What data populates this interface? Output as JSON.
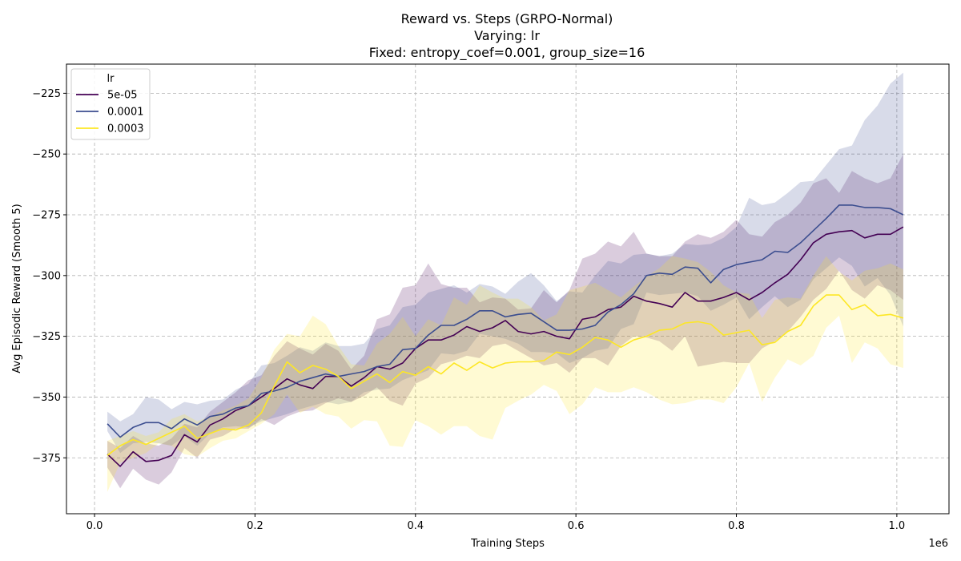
{
  "chart_data": {
    "type": "line",
    "title_lines": [
      "Reward vs. Steps (GRPO-Normal)",
      "Varying: lr",
      "Fixed: entropy_coef=0.001, group_size=16"
    ],
    "xlabel": "Training Steps",
    "ylabel": "Avg Episodic Reward (Smooth 5)",
    "x_offset_label": "1e6",
    "xlim": [
      -0.035,
      1.065
    ],
    "ylim": [
      -398,
      -213
    ],
    "x_ticks": [
      0.0,
      0.2,
      0.4,
      0.6,
      0.8,
      1.0
    ],
    "x_tick_labels": [
      "0.0",
      "0.2",
      "0.4",
      "0.6",
      "0.8",
      "1.0"
    ],
    "y_ticks": [
      -375,
      -350,
      -325,
      -300,
      -275,
      -250,
      -225
    ],
    "y_tick_labels": [
      "−375",
      "−350",
      "−325",
      "−300",
      "−275",
      "−250",
      "−225"
    ],
    "grid": true,
    "legend": {
      "title": "lr",
      "placement": "top-left"
    },
    "series": [
      {
        "name": "5e-05",
        "color": "#440154",
        "x": [
          0.016,
          0.032,
          0.048,
          0.064,
          0.08,
          0.096,
          0.112,
          0.128,
          0.144,
          0.16,
          0.176,
          0.192,
          0.208,
          0.224,
          0.24,
          0.256,
          0.272,
          0.288,
          0.304,
          0.32,
          0.336,
          0.352,
          0.368,
          0.384,
          0.4,
          0.416,
          0.432,
          0.448,
          0.464,
          0.48,
          0.496,
          0.512,
          0.528,
          0.544,
          0.56,
          0.576,
          0.592,
          0.608,
          0.624,
          0.64,
          0.656,
          0.672,
          0.688,
          0.704,
          0.72,
          0.736,
          0.752,
          0.768,
          0.784,
          0.8,
          0.816,
          0.832,
          0.848,
          0.864,
          0.88,
          0.896,
          0.912,
          0.928,
          0.944,
          0.96,
          0.976,
          0.992,
          1.008
        ],
        "mean": [
          -373.5,
          -378.5,
          -372.5,
          -376.5,
          -376.0,
          -374.0,
          -365.5,
          -368.5,
          -361.5,
          -359.0,
          -355.5,
          -353.5,
          -350.0,
          -346.5,
          -342.5,
          -345.0,
          -346.5,
          -341.5,
          -341.5,
          -345.5,
          -342.0,
          -337.5,
          -338.5,
          -336.0,
          -330.0,
          -326.5,
          -326.5,
          -324.5,
          -321.0,
          -323.0,
          -321.5,
          -318.5,
          -323.0,
          -324.0,
          -323.0,
          -325.0,
          -326.0,
          -318.0,
          -317.0,
          -314.0,
          -313.0,
          -308.5,
          -310.5,
          -311.5,
          -313.0,
          -307.0,
          -310.5,
          -310.5,
          -309.0,
          -307.0,
          -310.0,
          -307.0,
          -303.0,
          -299.5,
          -293.5,
          -286.5,
          -283.0,
          -282.0,
          -281.5,
          -284.5,
          -283.0,
          -283.0,
          -280.0
        ],
        "upper": [
          -368.0,
          -371.0,
          -366.0,
          -369.0,
          -370.0,
          -367.0,
          -361.0,
          -362.5,
          -356.0,
          -352.0,
          -348.0,
          -343.0,
          -341.0,
          -333.0,
          -327.0,
          -330.0,
          -332.5,
          -328.0,
          -331.0,
          -338.5,
          -333.0,
          -318.0,
          -316.0,
          -305.0,
          -304.0,
          -295.0,
          -303.5,
          -305.0,
          -305.0,
          -311.0,
          -309.0,
          -309.5,
          -314.0,
          -313.5,
          -306.0,
          -311.0,
          -306.0,
          -293.0,
          -291.0,
          -286.0,
          -288.0,
          -282.0,
          -291.0,
          -292.0,
          -292.0,
          -286.0,
          -283.0,
          -284.5,
          -282.0,
          -277.0,
          -283.0,
          -284.0,
          -278.0,
          -275.0,
          -270.0,
          -262.0,
          -260.0,
          -266.0,
          -257.0,
          -260.0,
          -262.0,
          -260.0,
          -250.0
        ],
        "lower": [
          -379.0,
          -387.5,
          -379.5,
          -384.0,
          -386.0,
          -381.0,
          -371.0,
          -375.0,
          -367.5,
          -366.0,
          -363.0,
          -363.0,
          -359.0,
          -361.5,
          -358.0,
          -356.0,
          -355.5,
          -352.5,
          -350.5,
          -352.0,
          -349.5,
          -346.0,
          -351.5,
          -353.5,
          -344.5,
          -342.0,
          -336.5,
          -335.0,
          -333.0,
          -334.0,
          -329.0,
          -328.0,
          -331.0,
          -334.0,
          -337.0,
          -336.0,
          -340.0,
          -334.0,
          -334.0,
          -337.0,
          -329.0,
          -325.0,
          -325.5,
          -327.0,
          -331.0,
          -325.0,
          -337.5,
          -336.5,
          -335.5,
          -336.0,
          -336.0,
          -330.0,
          -327.0,
          -323.0,
          -317.0,
          -310.0,
          -305.5,
          -298.0,
          -306.0,
          -309.5,
          -304.0,
          -306.0,
          -310.0
        ]
      },
      {
        "name": "0.0001",
        "color": "#3b4d8f",
        "x": [
          0.016,
          0.032,
          0.048,
          0.064,
          0.08,
          0.096,
          0.112,
          0.128,
          0.144,
          0.16,
          0.176,
          0.192,
          0.208,
          0.224,
          0.24,
          0.256,
          0.272,
          0.288,
          0.304,
          0.32,
          0.336,
          0.352,
          0.368,
          0.384,
          0.4,
          0.416,
          0.432,
          0.448,
          0.464,
          0.48,
          0.496,
          0.512,
          0.528,
          0.544,
          0.56,
          0.576,
          0.592,
          0.608,
          0.624,
          0.64,
          0.656,
          0.672,
          0.688,
          0.704,
          0.72,
          0.736,
          0.752,
          0.768,
          0.784,
          0.8,
          0.816,
          0.832,
          0.848,
          0.864,
          0.88,
          0.896,
          0.912,
          0.928,
          0.944,
          0.96,
          0.976,
          0.992,
          1.008
        ],
        "mean": [
          -361.0,
          -366.5,
          -362.5,
          -360.5,
          -360.5,
          -363.0,
          -359.0,
          -361.5,
          -358.0,
          -357.0,
          -354.5,
          -353.5,
          -348.5,
          -347.5,
          -346.0,
          -343.5,
          -342.0,
          -340.5,
          -341.5,
          -340.5,
          -339.5,
          -337.5,
          -336.5,
          -330.5,
          -330.0,
          -324.5,
          -320.5,
          -320.5,
          -318.0,
          -314.5,
          -314.5,
          -317.0,
          -316.0,
          -315.5,
          -319.0,
          -322.5,
          -322.5,
          -322.0,
          -320.5,
          -315.0,
          -312.0,
          -307.5,
          -300.0,
          -299.0,
          -299.5,
          -296.5,
          -297.0,
          -303.0,
          -297.5,
          -295.5,
          -294.5,
          -293.5,
          -290.0,
          -290.5,
          -286.5,
          -281.5,
          -276.5,
          -271.0,
          -271.0,
          -272.0,
          -272.0,
          -272.5,
          -275.0
        ],
        "upper": [
          -356.0,
          -360.0,
          -357.0,
          -350.0,
          -351.0,
          -355.0,
          -352.0,
          -353.0,
          -351.5,
          -351.0,
          -347.0,
          -344.5,
          -337.0,
          -336.0,
          -333.0,
          -329.5,
          -331.0,
          -327.5,
          -329.0,
          -329.0,
          -328.0,
          -322.0,
          -320.5,
          -313.0,
          -312.0,
          -307.0,
          -305.5,
          -304.0,
          -307.0,
          -303.5,
          -304.5,
          -307.5,
          -302.5,
          -299.0,
          -304.0,
          -310.5,
          -306.5,
          -307.0,
          -300.0,
          -294.0,
          -295.0,
          -291.5,
          -291.0,
          -292.0,
          -291.0,
          -287.0,
          -287.5,
          -287.0,
          -284.5,
          -280.0,
          -268.0,
          -271.0,
          -270.0,
          -266.0,
          -261.5,
          -261.0,
          -254.5,
          -248.0,
          -246.5,
          -236.0,
          -230.0,
          -221.0,
          -216.5
        ],
        "lower": [
          -364.0,
          -373.0,
          -369.0,
          -368.5,
          -369.0,
          -370.0,
          -366.0,
          -370.0,
          -365.0,
          -362.5,
          -362.0,
          -362.5,
          -360.0,
          -358.5,
          -357.0,
          -355.0,
          -353.5,
          -352.0,
          -353.0,
          -352.0,
          -348.0,
          -347.0,
          -346.5,
          -343.0,
          -341.0,
          -339.0,
          -332.0,
          -332.5,
          -331.0,
          -324.0,
          -325.0,
          -326.0,
          -328.0,
          -331.5,
          -331.5,
          -332.0,
          -336.0,
          -334.0,
          -331.0,
          -330.0,
          -322.0,
          -320.0,
          -307.0,
          -308.0,
          -307.5,
          -307.0,
          -308.5,
          -314.5,
          -312.0,
          -309.0,
          -318.0,
          -313.0,
          -308.5,
          -313.0,
          -310.0,
          -301.5,
          -297.0,
          -292.5,
          -296.0,
          -304.5,
          -301.0,
          -308.0,
          -321.0
        ]
      },
      {
        "name": "0.0003",
        "color": "#fde725",
        "x": [
          0.016,
          0.032,
          0.048,
          0.064,
          0.08,
          0.096,
          0.112,
          0.128,
          0.144,
          0.16,
          0.176,
          0.192,
          0.208,
          0.224,
          0.24,
          0.256,
          0.272,
          0.288,
          0.304,
          0.32,
          0.336,
          0.352,
          0.368,
          0.384,
          0.4,
          0.416,
          0.432,
          0.448,
          0.464,
          0.48,
          0.496,
          0.512,
          0.528,
          0.544,
          0.56,
          0.576,
          0.592,
          0.608,
          0.624,
          0.64,
          0.656,
          0.672,
          0.688,
          0.704,
          0.72,
          0.736,
          0.752,
          0.768,
          0.784,
          0.8,
          0.816,
          0.832,
          0.848,
          0.864,
          0.88,
          0.896,
          0.912,
          0.928,
          0.944,
          0.96,
          0.976,
          0.992,
          1.008
        ],
        "mean": [
          -374.0,
          -370.0,
          -367.5,
          -369.5,
          -367.0,
          -364.5,
          -362.0,
          -367.0,
          -365.0,
          -363.0,
          -363.5,
          -361.5,
          -356.5,
          -345.5,
          -335.5,
          -340.0,
          -337.0,
          -338.5,
          -341.5,
          -346.5,
          -343.5,
          -340.5,
          -344.0,
          -339.5,
          -341.0,
          -337.5,
          -340.5,
          -336.0,
          -339.0,
          -335.5,
          -338.0,
          -336.0,
          -335.5,
          -335.5,
          -335.0,
          -331.5,
          -332.5,
          -329.5,
          -325.5,
          -326.5,
          -329.5,
          -326.5,
          -325.0,
          -322.5,
          -322.0,
          -319.5,
          -319.0,
          -320.0,
          -324.5,
          -323.5,
          -322.5,
          -328.5,
          -327.5,
          -323.0,
          -320.5,
          -312.5,
          -308.0,
          -308.0,
          -314.0,
          -312.0,
          -316.5,
          -316.0,
          -317.5
        ],
        "upper": [
          -368.0,
          -366.0,
          -364.0,
          -366.0,
          -364.5,
          -359.0,
          -357.0,
          -360.0,
          -358.0,
          -355.5,
          -353.5,
          -350.5,
          -342.0,
          -330.5,
          -324.0,
          -325.0,
          -316.5,
          -320.0,
          -329.0,
          -336.5,
          -337.0,
          -328.0,
          -324.0,
          -317.0,
          -325.0,
          -318.0,
          -320.5,
          -309.0,
          -312.0,
          -304.0,
          -307.0,
          -309.5,
          -309.5,
          -313.0,
          -318.5,
          -316.0,
          -306.0,
          -304.5,
          -303.0,
          -306.0,
          -309.0,
          -304.5,
          -300.5,
          -297.0,
          -292.0,
          -293.0,
          -294.5,
          -298.5,
          -304.0,
          -307.0,
          -307.5,
          -317.5,
          -310.0,
          -309.0,
          -309.5,
          -300.0,
          -292.0,
          -298.5,
          -302.0,
          -298.0,
          -297.0,
          -295.0,
          -297.5
        ],
        "lower": [
          -389.0,
          -377.0,
          -375.0,
          -373.0,
          -369.0,
          -370.0,
          -373.5,
          -374.5,
          -371.0,
          -368.0,
          -367.0,
          -364.0,
          -361.0,
          -357.0,
          -349.0,
          -356.5,
          -354.0,
          -357.0,
          -358.0,
          -363.0,
          -359.5,
          -360.0,
          -370.0,
          -370.5,
          -359.5,
          -362.0,
          -365.5,
          -362.0,
          -362.0,
          -366.0,
          -367.5,
          -354.5,
          -351.5,
          -349.0,
          -345.0,
          -347.5,
          -357.0,
          -353.0,
          -346.0,
          -348.0,
          -348.0,
          -346.0,
          -348.0,
          -351.0,
          -353.0,
          -352.5,
          -351.0,
          -351.0,
          -352.5,
          -346.0,
          -336.0,
          -352.0,
          -342.0,
          -334.5,
          -337.0,
          -333.0,
          -321.5,
          -316.5,
          -336.0,
          -327.5,
          -330.0,
          -336.5,
          -338.0
        ]
      }
    ]
  }
}
